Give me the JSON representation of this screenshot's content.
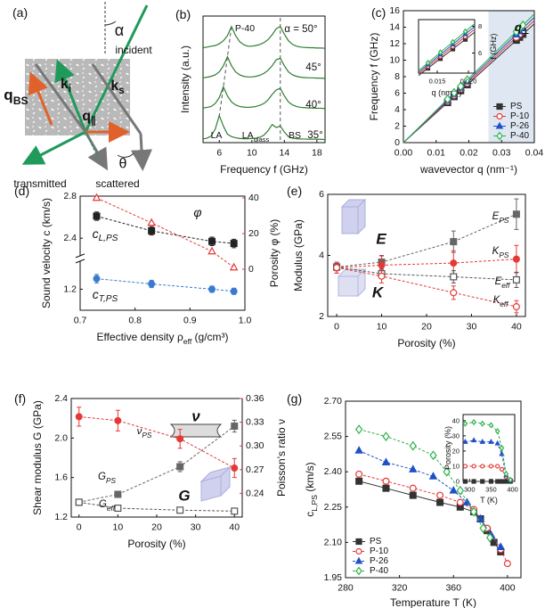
{
  "schematic": {
    "panel": "(a)",
    "labels": [
      "α",
      "incident",
      [
        "q",
        "BS"
      ],
      [
        "k",
        "i"
      ],
      [
        "k",
        "s"
      ],
      [
        "q",
        "∥"
      ],
      "θ",
      "transmitted",
      "scattered"
    ]
  },
  "chart_data": [
    {
      "type": "line",
      "panel": "(b)",
      "xlabel": "Frequency f (GHz)",
      "ylabel": "Intensity (a.u.)",
      "xlim": [
        4,
        19
      ],
      "ylim": [
        0,
        4.2
      ],
      "xticks": [
        6,
        10,
        14,
        18
      ],
      "annotations": [
        "P-40",
        "LA",
        [
          "LA",
          "glass"
        ],
        "BS"
      ],
      "x": [
        4,
        4.5,
        5,
        5.5,
        6,
        6.5,
        7,
        7.5,
        8,
        8.5,
        9,
        9.5,
        10,
        10.5,
        11,
        11.5,
        12,
        12.5,
        13,
        13.5,
        14,
        14.5,
        15,
        15.5,
        16,
        16.5,
        17,
        17.5,
        18,
        18.5,
        19
      ],
      "series": [
        {
          "name": "α = 50°",
          "color": "#2e7d32",
          "values": [
            3.15,
            3.17,
            3.2,
            3.22,
            3.28,
            3.38,
            3.55,
            3.85,
            3.55,
            3.35,
            3.25,
            3.2,
            3.2,
            3.22,
            3.26,
            3.32,
            3.42,
            3.58,
            3.78,
            3.85,
            3.6,
            3.38,
            3.26,
            3.2,
            3.17,
            3.16,
            3.15,
            3.15,
            3.14,
            3.14,
            3.13
          ]
        },
        {
          "name": "45°",
          "color": "#2e7d32",
          "values": [
            2.15,
            2.17,
            2.2,
            2.25,
            2.35,
            2.55,
            2.85,
            2.55,
            2.35,
            2.25,
            2.2,
            2.18,
            2.18,
            2.2,
            2.24,
            2.3,
            2.4,
            2.55,
            2.75,
            2.8,
            2.55,
            2.35,
            2.25,
            2.2,
            2.17,
            2.16,
            2.15,
            2.15,
            2.14,
            2.14,
            2.13
          ]
        },
        {
          "name": "40°",
          "color": "#2e7d32",
          "values": [
            1.15,
            1.17,
            1.2,
            1.3,
            1.5,
            1.85,
            1.55,
            1.35,
            1.25,
            1.2,
            1.18,
            1.17,
            1.18,
            1.2,
            1.24,
            1.3,
            1.42,
            1.6,
            1.75,
            1.8,
            1.55,
            1.35,
            1.25,
            1.2,
            1.17,
            1.16,
            1.15,
            1.15,
            1.14,
            1.14,
            1.13
          ]
        },
        {
          "name": "35°",
          "color": "#2e7d32",
          "values": [
            0.12,
            0.15,
            0.22,
            0.45,
            0.9,
            0.55,
            0.28,
            0.2,
            0.16,
            0.14,
            0.13,
            0.13,
            0.14,
            0.15,
            0.18,
            0.25,
            0.4,
            0.6,
            0.5,
            0.55,
            0.35,
            0.2,
            0.15,
            0.13,
            0.12,
            0.12,
            0.11,
            0.12,
            0.11,
            0.11,
            0.1
          ]
        }
      ]
    },
    {
      "type": "scatter",
      "panel": "(c)",
      "xlabel": "wavevector q (nm⁻¹)",
      "ylabel": "Frequency f (GHz)",
      "xlim": [
        0,
        0.04
      ],
      "ylim": [
        0,
        16
      ],
      "xticks": [
        {
          "value": 0,
          "label": "0.00"
        },
        0.01,
        0.02,
        0.03,
        0.04
      ],
      "yticks": [
        0,
        2,
        4,
        6,
        8,
        10,
        12,
        14,
        16
      ],
      "shaded_from": 0.026,
      "fit": "through origin",
      "legend": "lower right",
      "annotations": [
        [
          "q",
          "∥"
        ],
        [
          "q",
          "⊥"
        ]
      ],
      "x": [
        0.0135,
        0.0155,
        0.0175,
        0.0195,
        0.0345,
        0.0355,
        0.0365
      ],
      "series": [
        {
          "name": "PS",
          "color": "#333333",
          "marker": "square",
          "filled": true,
          "line": "none",
          "values": [
            4.86,
            5.58,
            6.3,
            7.02,
            12.42,
            12.78,
            13.14
          ]
        },
        {
          "name": "P-10",
          "color": "#e53935",
          "marker": "circle",
          "filled": false,
          "line": "none",
          "values": [
            5.0,
            5.74,
            6.48,
            7.22,
            12.77,
            13.14,
            13.51
          ]
        },
        {
          "name": "P-26",
          "color": "#2050c8",
          "marker": "triangle",
          "filled": true,
          "line": "none",
          "values": [
            5.13,
            5.89,
            6.65,
            7.41,
            13.11,
            13.49,
            13.87
          ]
        },
        {
          "name": "P-40",
          "color": "#2db24a",
          "marker": "diamond",
          "filled": false,
          "line": "none",
          "values": [
            5.27,
            6.05,
            6.83,
            7.61,
            13.46,
            13.85,
            14.24
          ]
        }
      ]
    },
    {
      "type": "scatter",
      "xlabel": "q (nm⁻¹)",
      "ylabel": "f (GHz)",
      "xlim": [
        0.012,
        0.021
      ],
      "ylim": [
        4.5,
        8.5
      ],
      "xticks": [
        0.015,
        {
          "value": 0.02,
          "label": "0.020"
        }
      ],
      "yticks": [
        6,
        8
      ],
      "fit": "through origin",
      "x": [
        0.0135,
        0.0155,
        0.0175,
        0.0195
      ],
      "series": [
        {
          "color": "#333333",
          "marker": "square",
          "filled": true,
          "line": "none",
          "values": [
            4.86,
            5.58,
            6.3,
            7.02
          ]
        },
        {
          "color": "#e53935",
          "marker": "circle",
          "filled": false,
          "line": "none",
          "values": [
            5.0,
            5.74,
            6.48,
            7.22
          ]
        },
        {
          "color": "#2050c8",
          "marker": "triangle",
          "filled": true,
          "line": "none",
          "values": [
            5.13,
            5.89,
            6.65,
            7.41
          ]
        },
        {
          "color": "#2db24a",
          "marker": "diamond",
          "filled": false,
          "line": "none",
          "values": [
            5.27,
            6.05,
            6.83,
            7.61
          ]
        }
      ]
    },
    {
      "type": "scatter",
      "panel": "(d)",
      "xlabel": [
        "Effective density ρ",
        "eff",
        " (g/cm³)"
      ],
      "ylabel": "Sound velocity c (km/s)",
      "y2label": "Porosity φ (%)",
      "xlim": [
        0.7,
        1.0
      ],
      "ylim": [
        1.0,
        2.8
      ],
      "ybreak": [
        1.45,
        2.25
      ],
      "y2lim": [
        -23,
        41
      ],
      "xticks": [
        0.7,
        0.8,
        0.9,
        {
          "value": 1,
          "label": "1.0"
        }
      ],
      "yticks": [
        1.2,
        2.4,
        2.8
      ],
      "y2ticks": [
        0,
        20,
        40
      ],
      "x": [
        0.73,
        0.83,
        0.94,
        0.98
      ],
      "series": [
        {
          "name": [
            "c",
            "L,PS"
          ],
          "color": "#222222",
          "marker": "square",
          "filled": true,
          "line": "dashed",
          "values": [
            2.61,
            2.47,
            2.37,
            2.35
          ],
          "errors": [
            0.04,
            0.04,
            0.04,
            0.04
          ]
        },
        {
          "name": [
            "c",
            "T,PS"
          ],
          "color": "#3a7ad0",
          "marker": "circle",
          "filled": true,
          "line": "dashed",
          "values": [
            1.3,
            1.25,
            1.2,
            1.18
          ],
          "errors": [
            0.04,
            0.035,
            0.03,
            0.03
          ]
        },
        {
          "name": "φ",
          "color": "#e53935",
          "marker": "triangle",
          "filled": false,
          "line": "dashed",
          "axis": "y2",
          "values": [
            40,
            26,
            10,
            1
          ]
        }
      ]
    },
    {
      "type": "scatter",
      "panel": "(e)",
      "xlabel": "Porosity (%)",
      "ylabel": "Modulus (GPa)",
      "xlim": [
        -2,
        42
      ],
      "ylim": [
        2,
        6
      ],
      "xticks": [
        0,
        10,
        20,
        30,
        40
      ],
      "yticks": [
        2,
        4,
        6
      ],
      "annotations": [
        "E",
        "K"
      ],
      "x": [
        0,
        10,
        26,
        40
      ],
      "series": [
        {
          "name": [
            "E",
            "PS"
          ],
          "color": "#666666",
          "marker": "square",
          "filled": true,
          "line": "dashed",
          "values": [
            3.62,
            3.78,
            4.45,
            5.35
          ],
          "errors": [
            0.12,
            0.22,
            0.35,
            0.5
          ]
        },
        {
          "name": [
            "K",
            "PS"
          ],
          "color": "#e53935",
          "marker": "circle",
          "filled": true,
          "line": "dashed",
          "values": [
            3.6,
            3.68,
            3.75,
            3.88
          ],
          "errors": [
            0.18,
            0.3,
            0.4,
            0.45
          ]
        },
        {
          "name": [
            "E",
            "eff"
          ],
          "color": "#555555",
          "marker": "square",
          "filled": false,
          "line": "dashed",
          "values": [
            3.62,
            3.4,
            3.3,
            3.2
          ],
          "errors": [
            0.12,
            0.15,
            0.2,
            0.25
          ]
        },
        {
          "name": [
            "K",
            "eff"
          ],
          "color": "#e53935",
          "marker": "circle",
          "filled": false,
          "line": "dashed",
          "values": [
            3.6,
            3.32,
            2.78,
            2.32
          ],
          "errors": [
            0.18,
            0.22,
            0.22,
            0.2
          ]
        }
      ]
    },
    {
      "type": "scatter",
      "panel": "(f)",
      "xlabel": "Porosity (%)",
      "ylabel": "Shear modulus G (GPa)",
      "y2label": "Poisson's ratio ν",
      "xlim": [
        -2,
        42
      ],
      "ylim": [
        1.2,
        2.4
      ],
      "y2lim": [
        0.21,
        0.36
      ],
      "xticks": [
        0,
        10,
        20,
        30,
        40
      ],
      "yticks": [
        1.2,
        1.6,
        {
          "value": 2,
          "label": "2.0"
        },
        2.4
      ],
      "y2ticks": [
        0.24,
        0.27,
        {
          "value": 0.3,
          "label": "0.30"
        },
        0.33,
        0.36
      ],
      "annotations": [
        "G",
        "ν"
      ],
      "x": [
        0,
        10,
        26,
        40
      ],
      "series": [
        {
          "name": [
            "ν",
            "PS"
          ],
          "color": "#e53935",
          "marker": "circle",
          "filled": true,
          "line": "dashed",
          "axis": "y2",
          "values": [
            0.337,
            0.332,
            0.309,
            0.272
          ],
          "errors": [
            0.012,
            0.013,
            0.012,
            0.012
          ]
        },
        {
          "name": [
            "G",
            "PS"
          ],
          "color": "#666666",
          "marker": "square",
          "filled": true,
          "line": "dashed",
          "values": [
            1.35,
            1.43,
            1.71,
            2.12
          ],
          "errors": [
            0.03,
            0.03,
            0.05,
            0.06
          ]
        },
        {
          "name": [
            "G",
            "eff"
          ],
          "color": "#555555",
          "marker": "square",
          "filled": false,
          "line": "dashed",
          "values": [
            1.35,
            1.29,
            1.27,
            1.26
          ],
          "errors": [
            0.03,
            0.03,
            0.02,
            0.02
          ]
        }
      ]
    },
    {
      "type": "scatter",
      "panel": "(g)",
      "xlabel": "Temperature T (K)",
      "ylabel": [
        "c",
        "L,PS",
        " (km/s)"
      ],
      "xlim": [
        280,
        410
      ],
      "ylim": [
        1.95,
        2.7
      ],
      "xticks": [
        280,
        320,
        360,
        400
      ],
      "yticks": [
        1.95,
        {
          "value": 2.1,
          "label": "2.10"
        },
        2.25,
        {
          "value": 2.4,
          "label": "2.40"
        },
        2.55,
        {
          "value": 2.7,
          "label": "2.70"
        }
      ],
      "legend": "lower left",
      "series": [
        {
          "name": "PS",
          "color": "#333333",
          "marker": "square",
          "filled": true,
          "line": "solid",
          "x": [
            290,
            310,
            330,
            350,
            365,
            375,
            380,
            385,
            390,
            395
          ],
          "values": [
            2.36,
            2.33,
            2.3,
            2.27,
            2.25,
            2.23,
            2.2,
            2.15,
            2.1,
            2.06
          ]
        },
        {
          "name": "P-10",
          "color": "#e53935",
          "marker": "circle",
          "filled": false,
          "line": "dashed",
          "x": [
            290,
            310,
            330,
            350,
            365,
            375,
            385,
            395,
            400
          ],
          "values": [
            2.39,
            2.36,
            2.33,
            2.3,
            2.27,
            2.24,
            2.16,
            2.07,
            2.01
          ]
        },
        {
          "name": "P-26",
          "color": "#2050c8",
          "marker": "triangle",
          "filled": true,
          "line": "dashed",
          "x": [
            290,
            310,
            330,
            345,
            360,
            370,
            380,
            388,
            395
          ],
          "values": [
            2.49,
            2.44,
            2.41,
            2.38,
            2.32,
            2.27,
            2.2,
            2.13,
            2.08
          ]
        },
        {
          "name": "P-40",
          "color": "#2db24a",
          "marker": "diamond",
          "filled": false,
          "line": "dashed",
          "x": [
            290,
            310,
            330,
            345,
            355,
            365,
            375,
            382,
            387
          ],
          "values": [
            2.58,
            2.55,
            2.51,
            2.47,
            2.4,
            2.32,
            2.23,
            2.16,
            2.12
          ]
        }
      ]
    },
    {
      "type": "scatter",
      "xlabel": "T (K)",
      "ylabel": "Porosity (%)",
      "xlim": [
        285,
        405
      ],
      "ylim": [
        0,
        44
      ],
      "xticks": [
        300,
        350,
        400
      ],
      "yticks": [
        0,
        10,
        20,
        30,
        40
      ],
      "x": [
        290,
        310,
        330,
        350,
        365,
        375,
        385,
        395
      ],
      "series": [
        {
          "color": "#333333",
          "marker": "square",
          "filled": true,
          "line": "solid",
          "values": [
            0,
            0,
            0,
            0,
            0,
            0,
            0,
            0
          ]
        },
        {
          "color": "#e53935",
          "marker": "circle",
          "filled": false,
          "line": "dashed",
          "values": [
            10,
            10,
            10,
            10,
            10,
            8,
            3,
            1
          ]
        },
        {
          "color": "#2050c8",
          "marker": "triangle",
          "filled": true,
          "line": "dashed",
          "values": [
            26,
            27,
            26,
            26,
            25,
            18,
            4,
            1
          ]
        },
        {
          "color": "#2db24a",
          "marker": "diamond",
          "filled": false,
          "line": "dashed",
          "values": [
            38,
            39,
            38,
            37,
            33,
            22,
            5,
            1
          ]
        }
      ]
    }
  ]
}
